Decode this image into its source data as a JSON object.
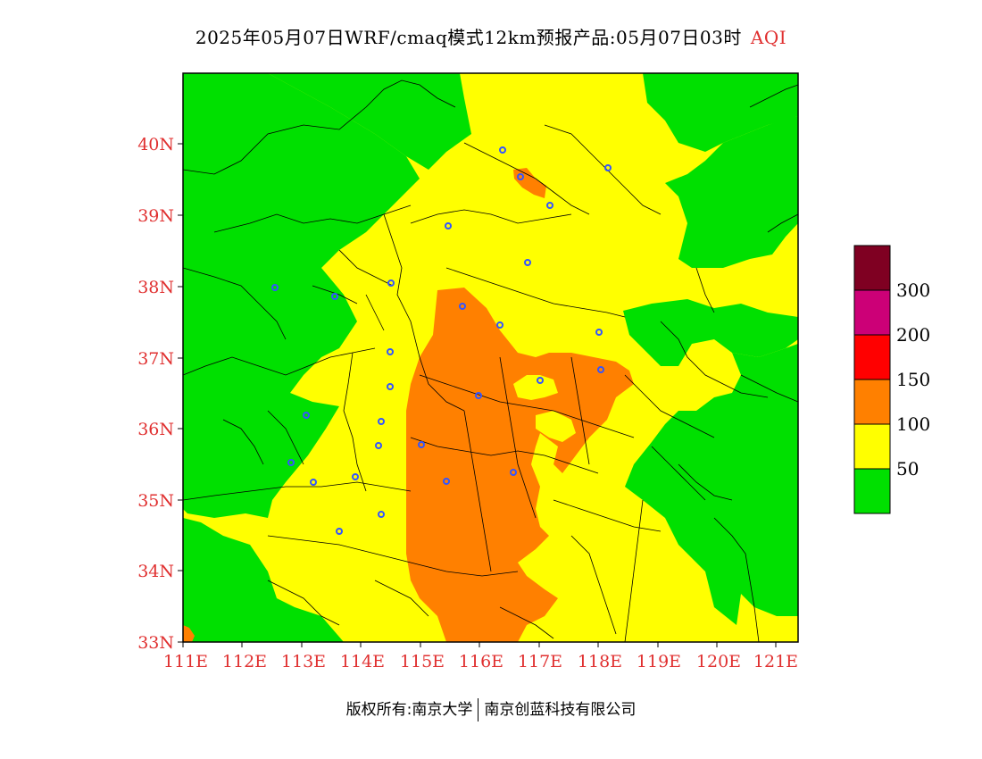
{
  "title": {
    "text": "2025年05月07日WRF/cmaq模式12km预报产品:05月07日03时",
    "variable": "AQI"
  },
  "map": {
    "lat_ticks": [
      "40N",
      "39N",
      "38N",
      "37N",
      "36N",
      "35N",
      "34N",
      "33N"
    ],
    "lon_ticks": [
      "111E",
      "112E",
      "113E",
      "114E",
      "115E",
      "116E",
      "117E",
      "118E",
      "119E",
      "120E",
      "121E"
    ],
    "lat_range": [
      33,
      41
    ],
    "lon_range": [
      111,
      121.4
    ],
    "category_colors": {
      "good": "#00e000",
      "moderate": "#ffff00",
      "unhealthy_sensitive": "#ff8000",
      "unhealthy": "#ff0000",
      "very_unhealthy": "#cc0077",
      "hazardous": "#800020"
    },
    "city_marker_color": "#3355ff"
  },
  "legend": {
    "colors": [
      "#7f0022",
      "#cc0077",
      "#ff0000",
      "#ff8000",
      "#ffff00",
      "#00e000"
    ],
    "labels": [
      "300",
      "200",
      "150",
      "100",
      "50"
    ]
  },
  "footer": {
    "copyright": "版权所有:南京大学",
    "company": "南京创蓝科技有限公司"
  }
}
